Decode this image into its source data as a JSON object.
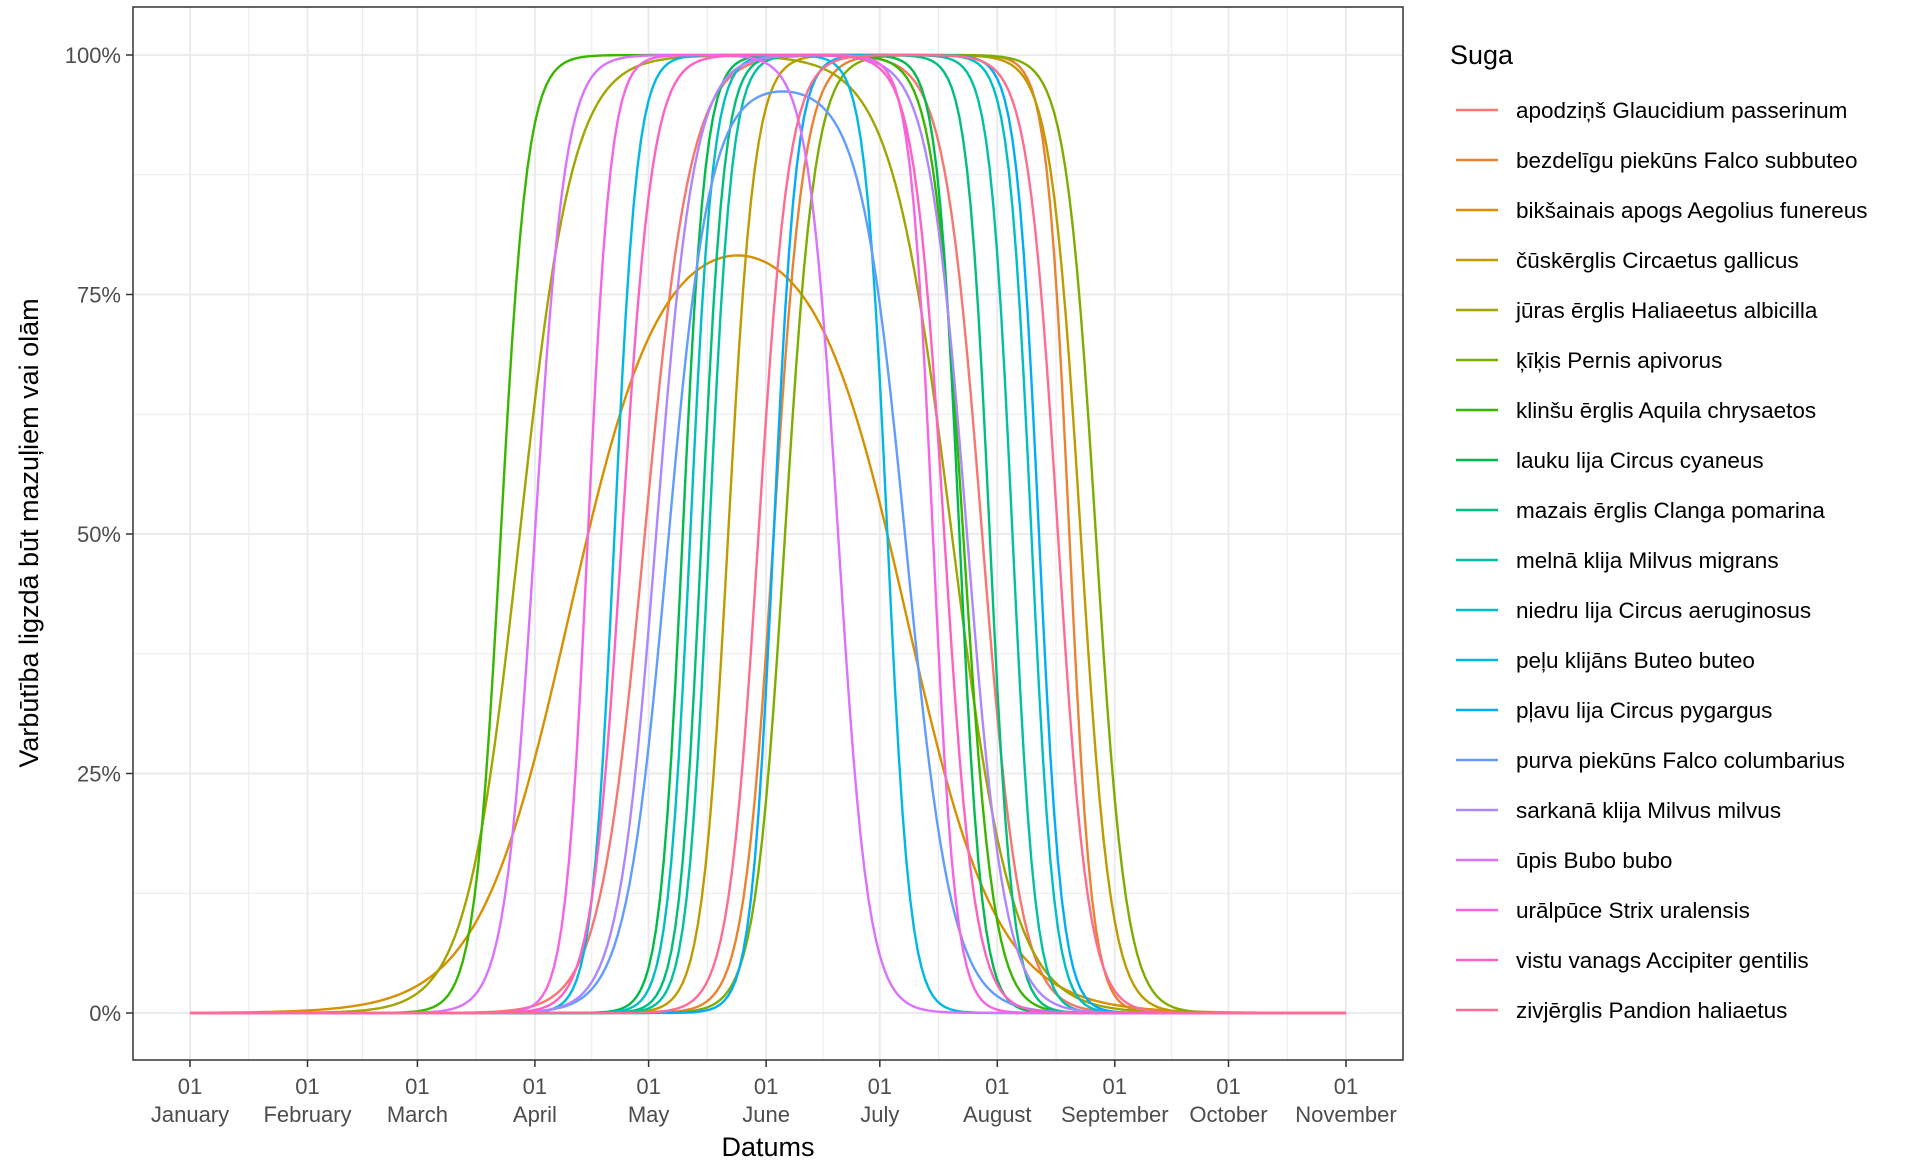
{
  "chart_data": {
    "type": "line",
    "title": "",
    "xlabel": "Datums",
    "ylabel": "Varbūtība ligzdā būt mazuļiem vai olām",
    "x_axis": {
      "type": "date",
      "range": [
        "2000-01-01",
        "2000-11-01"
      ],
      "ticks": [
        {
          "date": "2000-01-01",
          "day": "01",
          "month": "January"
        },
        {
          "date": "2000-02-01",
          "day": "01",
          "month": "February"
        },
        {
          "date": "2000-03-01",
          "day": "01",
          "month": "March"
        },
        {
          "date": "2000-04-01",
          "day": "01",
          "month": "April"
        },
        {
          "date": "2000-05-01",
          "day": "01",
          "month": "May"
        },
        {
          "date": "2000-06-01",
          "day": "01",
          "month": "June"
        },
        {
          "date": "2000-07-01",
          "day": "01",
          "month": "July"
        },
        {
          "date": "2000-08-01",
          "day": "01",
          "month": "August"
        },
        {
          "date": "2000-09-01",
          "day": "01",
          "month": "September"
        },
        {
          "date": "2000-10-01",
          "day": "01",
          "month": "October"
        },
        {
          "date": "2000-11-01",
          "day": "01",
          "month": "November"
        }
      ]
    },
    "y_axis": {
      "ylim": [
        0,
        1
      ],
      "ticks": [
        {
          "value": 0,
          "label": "0%"
        },
        {
          "value": 0.25,
          "label": "25%"
        },
        {
          "value": 0.5,
          "label": "50%"
        },
        {
          "value": 0.75,
          "label": "75%"
        },
        {
          "value": 1,
          "label": "100%"
        }
      ]
    },
    "grid": true,
    "legend": {
      "title": "Suga",
      "position": "right"
    },
    "series": [
      {
        "name": "apodziņš Glaucidium passerinum",
        "color": "#F8766D",
        "rise_date": "2000-04-30",
        "rise_width_days": 6,
        "fall_date": "2000-07-28",
        "fall_width_days": 5,
        "peak": 1.0
      },
      {
        "name": "bezdelīgu piekūns Falco subbuteo",
        "color": "#EA8331",
        "rise_date": "2000-06-03",
        "rise_width_days": 4,
        "fall_date": "2000-08-20",
        "fall_width_days": 3,
        "peak": 1.0
      },
      {
        "name": "bikšainais apogs Aegolius funereus",
        "color": "#D89000",
        "rise_date": "2000-04-10",
        "rise_width_days": 12,
        "fall_date": "2000-07-08",
        "fall_width_days": 12,
        "peak": 0.83
      },
      {
        "name": "čūskērglis Circaetus gallicus",
        "color": "#C09B00",
        "rise_date": "2000-05-22",
        "rise_width_days": 3.5,
        "fall_date": "2000-08-23",
        "fall_width_days": 4,
        "peak": 1.0
      },
      {
        "name": "jūras ērglis Haliaeetus albicilla",
        "color": "#A3A500",
        "rise_date": "2000-03-28",
        "rise_width_days": 7,
        "fall_date": "2000-07-20",
        "fall_width_days": 8,
        "peak": 1.0
      },
      {
        "name": "ķīķis Pernis apivorus",
        "color": "#7CAE00",
        "rise_date": "2000-06-06",
        "rise_width_days": 4,
        "fall_date": "2000-08-27",
        "fall_width_days": 4,
        "peak": 1.0
      },
      {
        "name": "klinšu ērglis Aquila chrysaetos",
        "color": "#39B600",
        "rise_date": "2000-03-23",
        "rise_width_days": 3.5,
        "fall_date": "2000-07-23",
        "fall_width_days": 4,
        "peak": 1.0
      },
      {
        "name": "lauku lija Circus cyaneus",
        "color": "#00BB4E",
        "rise_date": "2000-05-10",
        "rise_width_days": 3,
        "fall_date": "2000-07-22",
        "fall_width_days": 3,
        "peak": 1.0
      },
      {
        "name": "mazais ērglis Clanga pomarina",
        "color": "#00BF7D",
        "rise_date": "2000-05-15",
        "rise_width_days": 3,
        "fall_date": "2000-07-30",
        "fall_width_days": 3,
        "peak": 1.0
      },
      {
        "name": "melnā klija Milvus migrans",
        "color": "#00C1A3",
        "rise_date": "2000-05-17",
        "rise_width_days": 3,
        "fall_date": "2000-08-05",
        "fall_width_days": 3,
        "peak": 1.0
      },
      {
        "name": "niedru lija Circus aeruginosus",
        "color": "#00BFC4",
        "rise_date": "2000-05-12",
        "rise_width_days": 3,
        "fall_date": "2000-08-10",
        "fall_width_days": 3,
        "peak": 1.0
      },
      {
        "name": "peļu klijāns Buteo buteo",
        "color": "#00B9E3",
        "rise_date": "2000-04-22",
        "rise_width_days": 3,
        "fall_date": "2000-07-03",
        "fall_width_days": 3,
        "peak": 1.0
      },
      {
        "name": "pļavu lija Circus pygargus",
        "color": "#00ADFA",
        "rise_date": "2000-06-03",
        "rise_width_days": 3,
        "fall_date": "2000-08-12",
        "fall_width_days": 3,
        "peak": 1.0
      },
      {
        "name": "purva piekūns Falco columbarius",
        "color": "#619CFF",
        "rise_date": "2000-05-06",
        "rise_width_days": 5.5,
        "fall_date": "2000-07-08",
        "fall_width_days": 6,
        "peak": 0.97
      },
      {
        "name": "sarkanā klija Milvus milvus",
        "color": "#AE87FF",
        "rise_date": "2000-05-03",
        "rise_width_days": 5,
        "fall_date": "2000-07-24",
        "fall_width_days": 5,
        "peak": 1.0
      },
      {
        "name": "ūpis Bubo bubo",
        "color": "#DB72FB",
        "rise_date": "2000-04-01",
        "rise_width_days": 4,
        "fall_date": "2000-06-20",
        "fall_width_days": 4,
        "peak": 1.0
      },
      {
        "name": "urālpūce Strix uralensis",
        "color": "#F564E3",
        "rise_date": "2000-04-15",
        "rise_width_days": 3,
        "fall_date": "2000-07-15",
        "fall_width_days": 3,
        "peak": 1.0
      },
      {
        "name": "vistu vanags Accipiter gentilis",
        "color": "#FF61C3",
        "rise_date": "2000-04-24",
        "rise_width_days": 4,
        "fall_date": "2000-07-18",
        "fall_width_days": 4,
        "peak": 1.0
      },
      {
        "name": "zivjērglis Pandion haliaetus",
        "color": "#FF6C91",
        "rise_date": "2000-05-30",
        "rise_width_days": 4,
        "fall_date": "2000-08-17",
        "fall_width_days": 4,
        "peak": 1.0
      }
    ]
  }
}
